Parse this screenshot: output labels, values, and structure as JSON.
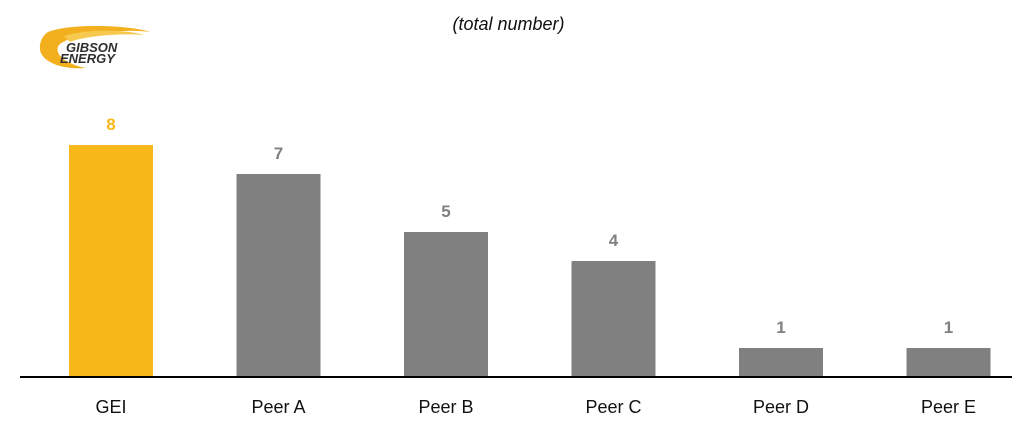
{
  "logo": {
    "text_line1": "GIBSON",
    "text_line2": "ENERGY",
    "colors": {
      "swoosh": "#f2b01e",
      "text": "#2e2e2e"
    }
  },
  "chart_data": {
    "type": "bar",
    "title": "",
    "subtitle": "(total number)",
    "xlabel": "",
    "ylabel": "",
    "categories": [
      "GEI",
      "Peer A",
      "Peer B",
      "Peer C",
      "Peer D",
      "Peer E"
    ],
    "values": [
      8,
      7,
      5,
      4,
      1,
      1
    ],
    "ylim": [
      0,
      8
    ],
    "grid": false,
    "legend": "none",
    "data_labels": true,
    "colors": {
      "highlight": "#f9b819",
      "default": "#808080",
      "highlight_label": "#f9b819",
      "default_label": "#808080",
      "axis": "#000000",
      "tick_label": "#111111"
    },
    "highlight_index": 0
  }
}
